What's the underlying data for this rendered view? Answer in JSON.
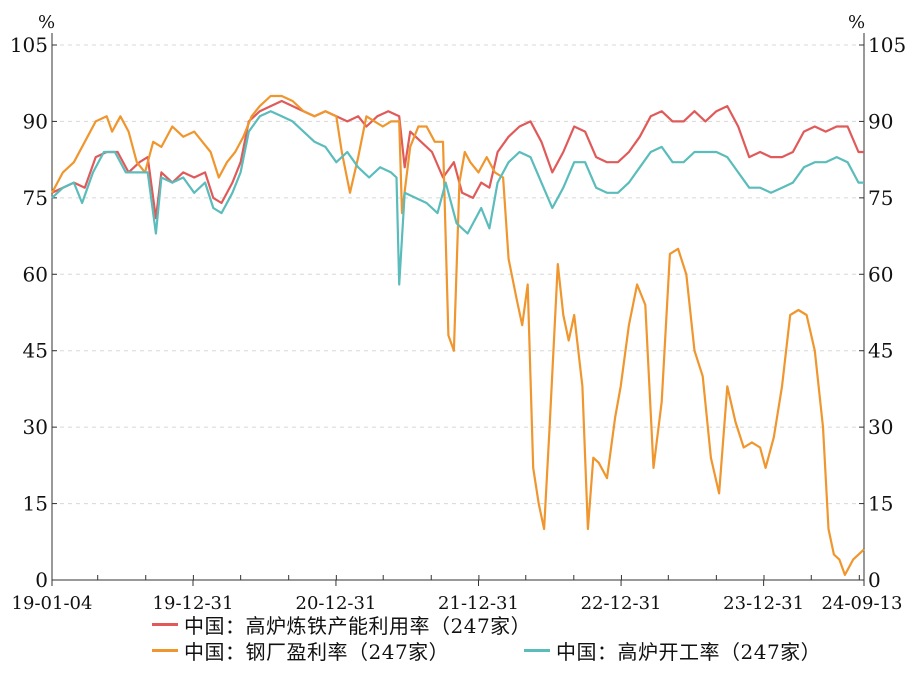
{
  "chart_data": {
    "type": "line",
    "left_unit": "%",
    "right_unit": "%",
    "ylim": [
      0,
      105
    ],
    "yticks": [
      0,
      15,
      30,
      45,
      60,
      75,
      90,
      105
    ],
    "grid": true,
    "legend_position": "bottom",
    "x_start": "2019-01-04",
    "x_end": "2024-09-13",
    "xtick_labels": [
      {
        "date": "2019-01-04",
        "label": "19-01-04"
      },
      {
        "date": "2019-12-31",
        "label": "19-12-31"
      },
      {
        "date": "2020-12-31",
        "label": "20-12-31"
      },
      {
        "date": "2021-12-31",
        "label": "21-12-31"
      },
      {
        "date": "2022-12-31",
        "label": "22-12-31"
      },
      {
        "date": "2023-12-31",
        "label": "23-12-31"
      },
      {
        "date": "2024-09-13",
        "label": "24-09-13"
      }
    ],
    "series": [
      {
        "name": "中国：高炉炼铁产能利用率（247家）",
        "color": "#e05a5a",
        "points": [
          [
            "2019-01-04",
            76
          ],
          [
            "2019-02-01",
            77
          ],
          [
            "2019-03-01",
            78
          ],
          [
            "2019-03-29",
            77
          ],
          [
            "2019-04-26",
            83
          ],
          [
            "2019-05-24",
            84
          ],
          [
            "2019-06-21",
            84
          ],
          [
            "2019-07-19",
            80
          ],
          [
            "2019-08-16",
            82
          ],
          [
            "2019-09-06",
            83
          ],
          [
            "2019-09-27",
            71
          ],
          [
            "2019-10-11",
            80
          ],
          [
            "2019-11-08",
            78
          ],
          [
            "2019-12-06",
            80
          ],
          [
            "2020-01-03",
            79
          ],
          [
            "2020-01-31",
            80
          ],
          [
            "2020-02-21",
            75
          ],
          [
            "2020-03-13",
            74
          ],
          [
            "2020-04-10",
            78
          ],
          [
            "2020-05-01",
            82
          ],
          [
            "2020-05-22",
            90
          ],
          [
            "2020-06-19",
            92
          ],
          [
            "2020-07-17",
            93
          ],
          [
            "2020-08-14",
            94
          ],
          [
            "2020-09-11",
            93
          ],
          [
            "2020-10-09",
            92
          ],
          [
            "2020-11-06",
            91
          ],
          [
            "2020-12-04",
            92
          ],
          [
            "2021-01-01",
            91
          ],
          [
            "2021-01-29",
            90
          ],
          [
            "2021-02-26",
            91
          ],
          [
            "2021-03-19",
            89
          ],
          [
            "2021-04-16",
            91
          ],
          [
            "2021-05-14",
            92
          ],
          [
            "2021-06-11",
            91
          ],
          [
            "2021-06-25",
            81
          ],
          [
            "2021-07-09",
            88
          ],
          [
            "2021-08-06",
            86
          ],
          [
            "2021-09-03",
            84
          ],
          [
            "2021-10-01",
            79
          ],
          [
            "2021-10-29",
            82
          ],
          [
            "2021-11-19",
            76
          ],
          [
            "2021-12-17",
            75
          ],
          [
            "2022-01-07",
            78
          ],
          [
            "2022-01-28",
            77
          ],
          [
            "2022-02-18",
            84
          ],
          [
            "2022-03-18",
            87
          ],
          [
            "2022-04-15",
            89
          ],
          [
            "2022-05-13",
            90
          ],
          [
            "2022-06-10",
            86
          ],
          [
            "2022-07-08",
            80
          ],
          [
            "2022-08-05",
            84
          ],
          [
            "2022-09-02",
            89
          ],
          [
            "2022-09-30",
            88
          ],
          [
            "2022-10-28",
            83
          ],
          [
            "2022-11-25",
            82
          ],
          [
            "2022-12-23",
            82
          ],
          [
            "2023-01-20",
            84
          ],
          [
            "2023-02-17",
            87
          ],
          [
            "2023-03-17",
            91
          ],
          [
            "2023-04-14",
            92
          ],
          [
            "2023-05-12",
            90
          ],
          [
            "2023-06-09",
            90
          ],
          [
            "2023-07-07",
            92
          ],
          [
            "2023-08-04",
            90
          ],
          [
            "2023-09-01",
            92
          ],
          [
            "2023-09-29",
            93
          ],
          [
            "2023-10-27",
            89
          ],
          [
            "2023-11-24",
            83
          ],
          [
            "2023-12-22",
            84
          ],
          [
            "2024-01-19",
            83
          ],
          [
            "2024-02-16",
            83
          ],
          [
            "2024-03-15",
            84
          ],
          [
            "2024-04-12",
            88
          ],
          [
            "2024-05-10",
            89
          ],
          [
            "2024-06-07",
            88
          ],
          [
            "2024-07-05",
            89
          ],
          [
            "2024-08-02",
            89
          ],
          [
            "2024-08-30",
            84
          ],
          [
            "2024-09-13",
            84
          ]
        ]
      },
      {
        "name": "中国：钢厂盈利率（247家）",
        "color": "#f0962e",
        "points": [
          [
            "2019-01-04",
            76
          ],
          [
            "2019-02-01",
            80
          ],
          [
            "2019-03-01",
            82
          ],
          [
            "2019-03-29",
            86
          ],
          [
            "2019-04-26",
            90
          ],
          [
            "2019-05-24",
            91
          ],
          [
            "2019-06-07",
            88
          ],
          [
            "2019-06-28",
            91
          ],
          [
            "2019-07-19",
            88
          ],
          [
            "2019-08-09",
            82
          ],
          [
            "2019-08-30",
            80
          ],
          [
            "2019-09-20",
            86
          ],
          [
            "2019-10-11",
            85
          ],
          [
            "2019-11-08",
            89
          ],
          [
            "2019-12-06",
            87
          ],
          [
            "2020-01-03",
            88
          ],
          [
            "2020-01-24",
            86
          ],
          [
            "2020-02-14",
            84
          ],
          [
            "2020-03-06",
            79
          ],
          [
            "2020-03-27",
            82
          ],
          [
            "2020-04-17",
            84
          ],
          [
            "2020-05-08",
            87
          ],
          [
            "2020-05-29",
            91
          ],
          [
            "2020-06-19",
            93
          ],
          [
            "2020-07-17",
            95
          ],
          [
            "2020-08-14",
            95
          ],
          [
            "2020-09-11",
            94
          ],
          [
            "2020-10-09",
            92
          ],
          [
            "2020-11-06",
            91
          ],
          [
            "2020-12-04",
            92
          ],
          [
            "2021-01-01",
            91
          ],
          [
            "2021-01-15",
            84
          ],
          [
            "2021-02-05",
            76
          ],
          [
            "2021-02-26",
            83
          ],
          [
            "2021-03-19",
            91
          ],
          [
            "2021-04-09",
            90
          ],
          [
            "2021-04-30",
            89
          ],
          [
            "2021-05-21",
            90
          ],
          [
            "2021-06-11",
            90
          ],
          [
            "2021-06-18",
            72
          ],
          [
            "2021-07-09",
            85
          ],
          [
            "2021-07-30",
            89
          ],
          [
            "2021-08-20",
            89
          ],
          [
            "2021-09-10",
            86
          ],
          [
            "2021-10-01",
            86
          ],
          [
            "2021-10-15",
            48
          ],
          [
            "2021-10-29",
            45
          ],
          [
            "2021-11-12",
            78
          ],
          [
            "2021-11-26",
            84
          ],
          [
            "2021-12-10",
            82
          ],
          [
            "2021-12-31",
            80
          ],
          [
            "2022-01-21",
            83
          ],
          [
            "2022-02-11",
            80
          ],
          [
            "2022-03-04",
            79
          ],
          [
            "2022-03-18",
            63
          ],
          [
            "2022-04-08",
            55
          ],
          [
            "2022-04-22",
            50
          ],
          [
            "2022-05-06",
            58
          ],
          [
            "2022-05-20",
            22
          ],
          [
            "2022-06-03",
            15
          ],
          [
            "2022-06-17",
            10
          ],
          [
            "2022-07-01",
            30
          ],
          [
            "2022-07-22",
            62
          ],
          [
            "2022-08-05",
            52
          ],
          [
            "2022-08-19",
            47
          ],
          [
            "2022-09-02",
            52
          ],
          [
            "2022-09-23",
            38
          ],
          [
            "2022-10-07",
            10
          ],
          [
            "2022-10-21",
            24
          ],
          [
            "2022-11-04",
            23
          ],
          [
            "2022-11-25",
            20
          ],
          [
            "2022-12-16",
            32
          ],
          [
            "2022-12-30",
            38
          ],
          [
            "2023-01-20",
            50
          ],
          [
            "2023-02-10",
            58
          ],
          [
            "2023-03-03",
            54
          ],
          [
            "2023-03-24",
            22
          ],
          [
            "2023-04-14",
            35
          ],
          [
            "2023-05-05",
            64
          ],
          [
            "2023-05-26",
            65
          ],
          [
            "2023-06-16",
            60
          ],
          [
            "2023-07-07",
            45
          ],
          [
            "2023-07-28",
            40
          ],
          [
            "2023-08-18",
            24
          ],
          [
            "2023-09-08",
            17
          ],
          [
            "2023-09-29",
            38
          ],
          [
            "2023-10-20",
            31
          ],
          [
            "2023-11-10",
            26
          ],
          [
            "2023-12-01",
            27
          ],
          [
            "2023-12-22",
            26
          ],
          [
            "2024-01-05",
            22
          ],
          [
            "2024-01-26",
            28
          ],
          [
            "2024-02-16",
            38
          ],
          [
            "2024-03-08",
            52
          ],
          [
            "2024-03-29",
            53
          ],
          [
            "2024-04-19",
            52
          ],
          [
            "2024-05-10",
            45
          ],
          [
            "2024-05-31",
            30
          ],
          [
            "2024-06-14",
            10
          ],
          [
            "2024-06-28",
            5
          ],
          [
            "2024-07-12",
            4
          ],
          [
            "2024-07-26",
            1
          ],
          [
            "2024-08-16",
            4
          ],
          [
            "2024-09-13",
            6
          ]
        ]
      },
      {
        "name": "中国：高炉开工率（247家）",
        "color": "#5bbcbc",
        "points": [
          [
            "2019-01-04",
            75
          ],
          [
            "2019-02-01",
            77
          ],
          [
            "2019-03-01",
            78
          ],
          [
            "2019-03-22",
            74
          ],
          [
            "2019-04-19",
            80
          ],
          [
            "2019-05-17",
            84
          ],
          [
            "2019-06-14",
            84
          ],
          [
            "2019-07-12",
            80
          ],
          [
            "2019-08-09",
            80
          ],
          [
            "2019-09-06",
            80
          ],
          [
            "2019-09-27",
            68
          ],
          [
            "2019-10-11",
            79
          ],
          [
            "2019-11-08",
            78
          ],
          [
            "2019-12-06",
            79
          ],
          [
            "2020-01-03",
            76
          ],
          [
            "2020-01-31",
            78
          ],
          [
            "2020-02-21",
            73
          ],
          [
            "2020-03-13",
            72
          ],
          [
            "2020-04-10",
            76
          ],
          [
            "2020-05-01",
            80
          ],
          [
            "2020-05-22",
            88
          ],
          [
            "2020-06-19",
            91
          ],
          [
            "2020-07-17",
            92
          ],
          [
            "2020-08-14",
            91
          ],
          [
            "2020-09-11",
            90
          ],
          [
            "2020-10-09",
            88
          ],
          [
            "2020-11-06",
            86
          ],
          [
            "2020-12-04",
            85
          ],
          [
            "2021-01-01",
            82
          ],
          [
            "2021-01-29",
            84
          ],
          [
            "2021-02-26",
            81
          ],
          [
            "2021-03-26",
            79
          ],
          [
            "2021-04-23",
            81
          ],
          [
            "2021-05-21",
            80
          ],
          [
            "2021-06-04",
            79
          ],
          [
            "2021-06-11",
            58
          ],
          [
            "2021-06-25",
            76
          ],
          [
            "2021-07-23",
            75
          ],
          [
            "2021-08-20",
            74
          ],
          [
            "2021-09-17",
            72
          ],
          [
            "2021-10-08",
            78
          ],
          [
            "2021-11-05",
            70
          ],
          [
            "2021-12-03",
            68
          ],
          [
            "2022-01-07",
            73
          ],
          [
            "2022-01-28",
            69
          ],
          [
            "2022-02-18",
            78
          ],
          [
            "2022-03-18",
            82
          ],
          [
            "2022-04-15",
            84
          ],
          [
            "2022-05-13",
            83
          ],
          [
            "2022-06-10",
            78
          ],
          [
            "2022-07-08",
            73
          ],
          [
            "2022-08-05",
            77
          ],
          [
            "2022-09-02",
            82
          ],
          [
            "2022-09-30",
            82
          ],
          [
            "2022-10-28",
            77
          ],
          [
            "2022-11-25",
            76
          ],
          [
            "2022-12-23",
            76
          ],
          [
            "2023-01-20",
            78
          ],
          [
            "2023-02-17",
            81
          ],
          [
            "2023-03-17",
            84
          ],
          [
            "2023-04-14",
            85
          ],
          [
            "2023-05-12",
            82
          ],
          [
            "2023-06-09",
            82
          ],
          [
            "2023-07-07",
            84
          ],
          [
            "2023-08-04",
            84
          ],
          [
            "2023-09-01",
            84
          ],
          [
            "2023-09-29",
            83
          ],
          [
            "2023-10-27",
            80
          ],
          [
            "2023-11-24",
            77
          ],
          [
            "2023-12-22",
            77
          ],
          [
            "2024-01-19",
            76
          ],
          [
            "2024-02-16",
            77
          ],
          [
            "2024-03-15",
            78
          ],
          [
            "2024-04-12",
            81
          ],
          [
            "2024-05-10",
            82
          ],
          [
            "2024-06-07",
            82
          ],
          [
            "2024-07-05",
            83
          ],
          [
            "2024-08-02",
            82
          ],
          [
            "2024-08-30",
            78
          ],
          [
            "2024-09-13",
            78
          ]
        ]
      }
    ]
  }
}
